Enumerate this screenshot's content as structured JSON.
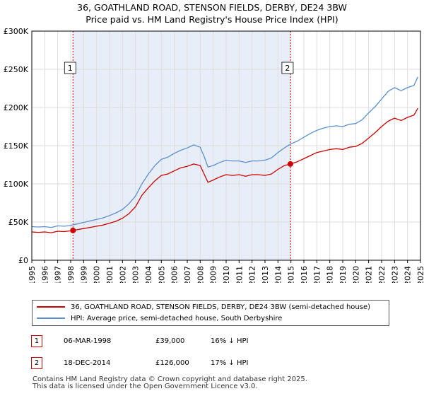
{
  "title_line1": "36, GOATHLAND ROAD, STENSON FIELDS, DERBY, DE24 3BW",
  "title_line2": "Price paid vs. HM Land Registry's House Price Index (HPI)",
  "colors": {
    "property": "#cc0000",
    "hpi": "#5b8fcc",
    "shade": "#e8eef8",
    "grid": "#dddddd",
    "marker_border": "#cc0000"
  },
  "chart_data": {
    "type": "line",
    "title": "Price paid vs. HM Land Registry's House Price Index (HPI)",
    "xlabel": "",
    "ylabel": "",
    "xlim": [
      1995,
      2025
    ],
    "ylim": [
      0,
      300000
    ],
    "y_ticks": [
      0,
      50000,
      100000,
      150000,
      200000,
      250000,
      300000
    ],
    "y_tick_labels": [
      "£0",
      "£50K",
      "£100K",
      "£150K",
      "£200K",
      "£250K",
      "£300K"
    ],
    "x_ticks": [
      "1995",
      "1996",
      "1997",
      "1998",
      "1999",
      "2000",
      "2001",
      "2002",
      "2003",
      "2004",
      "2005",
      "2006",
      "2007",
      "2008",
      "2009",
      "2010",
      "2011",
      "2012",
      "2013",
      "2014",
      "2015",
      "2016",
      "2017",
      "2018",
      "2019",
      "2020",
      "2021",
      "2022",
      "2023",
      "2024",
      "2025"
    ],
    "shaded_range": [
      1998.18,
      2014.96
    ],
    "series": [
      {
        "name": "36, GOATHLAND ROAD, STENSON FIELDS, DERBY, DE24 3BW (semi-detached house)",
        "x": [
          1995.0,
          1995.5,
          1996.0,
          1996.5,
          1997.0,
          1997.5,
          1998.0,
          1998.18,
          1998.5,
          1999.0,
          1999.5,
          2000.0,
          2000.5,
          2001.0,
          2001.5,
          2002.0,
          2002.5,
          2003.0,
          2003.5,
          2004.0,
          2004.5,
          2005.0,
          2005.5,
          2006.0,
          2006.5,
          2007.0,
          2007.5,
          2008.0,
          2008.3,
          2008.6,
          2009.0,
          2009.5,
          2010.0,
          2010.5,
          2011.0,
          2011.5,
          2012.0,
          2012.5,
          2013.0,
          2013.5,
          2014.0,
          2014.5,
          2014.96,
          2015.5,
          2016.0,
          2016.5,
          2017.0,
          2017.5,
          2018.0,
          2018.5,
          2019.0,
          2019.5,
          2020.0,
          2020.5,
          2021.0,
          2021.5,
          2022.0,
          2022.5,
          2023.0,
          2023.5,
          2024.0,
          2024.5,
          2024.8
        ],
        "values": [
          37000,
          36500,
          37000,
          36000,
          38000,
          37500,
          38500,
          39000,
          40000,
          41500,
          43000,
          44500,
          46000,
          48500,
          51000,
          55000,
          61000,
          70000,
          85000,
          95000,
          104000,
          111000,
          113000,
          117000,
          121000,
          123000,
          126000,
          124000,
          113000,
          102000,
          105000,
          109000,
          112000,
          111000,
          112000,
          110000,
          112000,
          112000,
          111000,
          113000,
          119000,
          124000,
          126000,
          129000,
          133000,
          137000,
          141000,
          143000,
          145000,
          146000,
          145000,
          148000,
          149000,
          153000,
          160000,
          167000,
          175000,
          182000,
          186000,
          183000,
          187000,
          190000,
          199000
        ]
      },
      {
        "name": "HPI: Average price, semi-detached house, South Derbyshire",
        "x": [
          1995.0,
          1995.5,
          1996.0,
          1996.5,
          1997.0,
          1997.5,
          1998.0,
          1998.18,
          1998.5,
          1999.0,
          1999.5,
          2000.0,
          2000.5,
          2001.0,
          2001.5,
          2002.0,
          2002.5,
          2003.0,
          2003.5,
          2004.0,
          2004.5,
          2005.0,
          2005.5,
          2006.0,
          2006.5,
          2007.0,
          2007.5,
          2008.0,
          2008.3,
          2008.6,
          2009.0,
          2009.5,
          2010.0,
          2010.5,
          2011.0,
          2011.5,
          2012.0,
          2012.5,
          2013.0,
          2013.5,
          2014.0,
          2014.5,
          2014.96,
          2015.5,
          2016.0,
          2016.5,
          2017.0,
          2017.5,
          2018.0,
          2018.5,
          2019.0,
          2019.5,
          2020.0,
          2020.5,
          2021.0,
          2021.5,
          2022.0,
          2022.5,
          2023.0,
          2023.5,
          2024.0,
          2024.5,
          2024.8
        ],
        "values": [
          44000,
          43500,
          44000,
          43000,
          45000,
          44500,
          45500,
          46500,
          47500,
          49500,
          51500,
          53500,
          55500,
          58500,
          62000,
          66500,
          74000,
          84000,
          100000,
          113000,
          124000,
          132000,
          135000,
          140000,
          144000,
          147000,
          151000,
          148000,
          136000,
          122000,
          124000,
          128000,
          131000,
          130000,
          130000,
          128000,
          130000,
          130000,
          131000,
          134000,
          141000,
          147000,
          152000,
          156000,
          161000,
          166000,
          170000,
          173000,
          175000,
          176000,
          175000,
          178000,
          179000,
          184000,
          193000,
          201000,
          211000,
          221000,
          226000,
          222000,
          226000,
          229000,
          240000
        ]
      }
    ],
    "annotations": [
      {
        "label": "1",
        "x": 1998.18,
        "value": 39000
      },
      {
        "label": "2",
        "x": 2014.96,
        "value": 126000
      }
    ]
  },
  "legend": [
    {
      "label": "36, GOATHLAND ROAD, STENSON FIELDS, DERBY, DE24 3BW (semi-detached house)",
      "color": "#cc0000"
    },
    {
      "label": "HPI: Average price, semi-detached house, South Derbyshire",
      "color": "#5b8fcc"
    }
  ],
  "sales": [
    {
      "num": "1",
      "date": "06-MAR-1998",
      "price": "£39,000",
      "hpi": "16% ↓ HPI"
    },
    {
      "num": "2",
      "date": "18-DEC-2014",
      "price": "£126,000",
      "hpi": "17% ↓ HPI"
    }
  ],
  "footer_line1": "Contains HM Land Registry data © Crown copyright and database right 2025.",
  "footer_line2": "This data is licensed under the Open Government Licence v3.0."
}
